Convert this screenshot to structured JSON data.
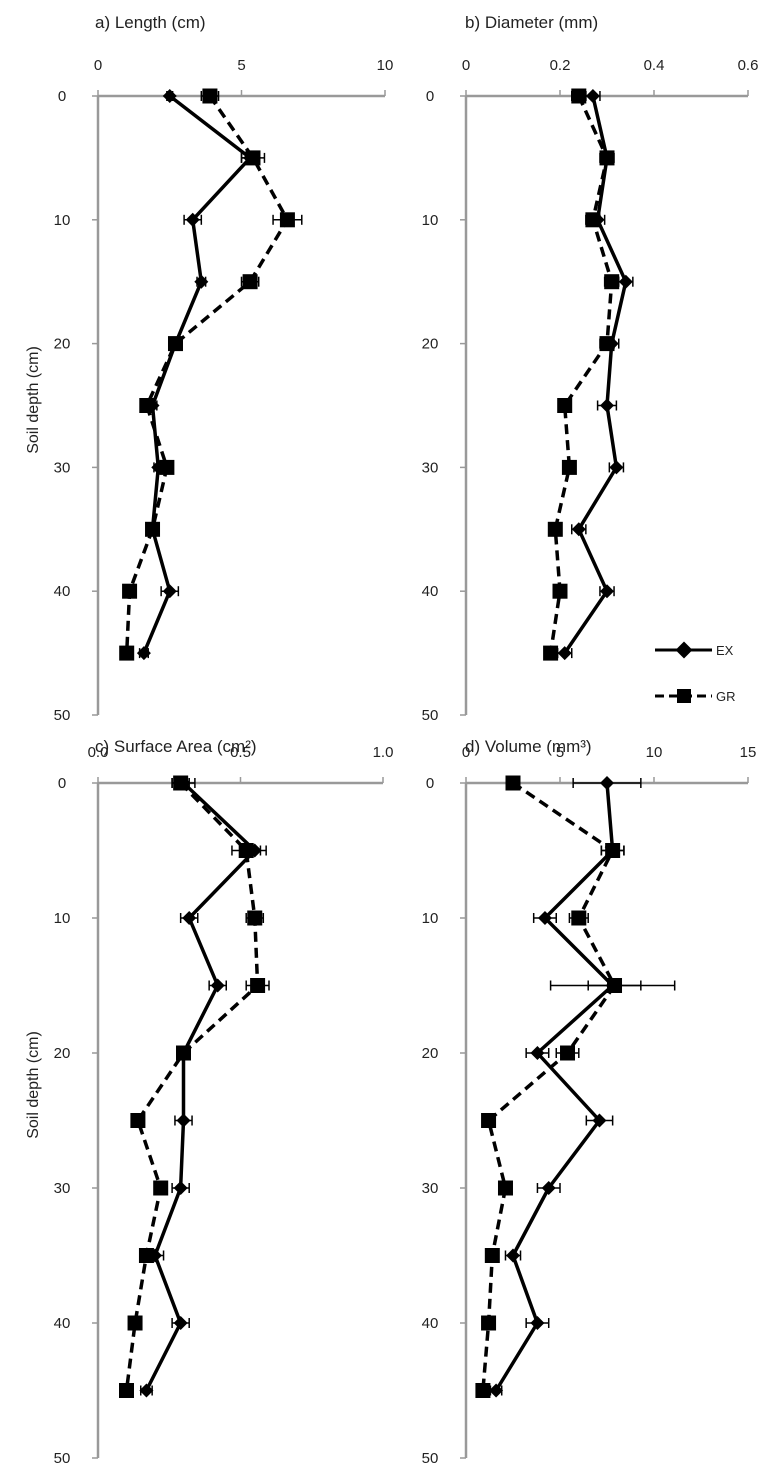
{
  "figure": {
    "ylabel": "Soil depth (cm)",
    "legend": [
      {
        "label": "EX",
        "style": "solid",
        "marker": "diamond"
      },
      {
        "label": "GR",
        "style": "dashed",
        "marker": "square"
      }
    ],
    "colors": {
      "line": "#000000",
      "axis": "#999999",
      "text": "#222222"
    }
  },
  "chart_data": [
    {
      "type": "line",
      "title": "a) Length (cm)",
      "xlim": [
        0,
        10
      ],
      "x_ticks": [
        "0",
        "5",
        "10"
      ],
      "ylim": [
        0,
        50
      ],
      "y_ticks": [
        "0",
        "10",
        "20",
        "30",
        "40",
        "50"
      ],
      "ylabel": "Soil depth (cm)",
      "depths": [
        0,
        5,
        10,
        15,
        20,
        25,
        30,
        35,
        40,
        45
      ],
      "series": [
        {
          "name": "EX",
          "values": [
            2.5,
            5.3,
            3.3,
            3.6,
            2.7,
            1.9,
            2.1,
            1.9,
            2.5,
            1.6
          ],
          "errors": [
            0.1,
            0.3,
            0.3,
            0.15,
            0.15,
            0.15,
            0.15,
            0.1,
            0.3,
            0.15
          ]
        },
        {
          "name": "GR",
          "values": [
            3.9,
            5.4,
            6.6,
            5.3,
            2.7,
            1.7,
            2.4,
            1.9,
            1.1,
            1.0
          ],
          "errors": [
            0.3,
            0.4,
            0.5,
            0.3,
            0.15,
            0.2,
            0.2,
            0.15,
            0.1,
            0.1
          ]
        }
      ]
    },
    {
      "type": "line",
      "title": "b) Diameter (mm)",
      "xlim": [
        0,
        0.6
      ],
      "x_ticks": [
        "0",
        "0.2",
        "0.4",
        "0.6"
      ],
      "ylim": [
        0,
        50
      ],
      "y_ticks": [
        "0",
        "10",
        "20",
        "30",
        "40",
        "50"
      ],
      "depths": [
        0,
        5,
        10,
        15,
        20,
        25,
        30,
        35,
        40,
        45
      ],
      "series": [
        {
          "name": "EX",
          "values": [
            0.27,
            0.3,
            0.28,
            0.34,
            0.31,
            0.3,
            0.32,
            0.24,
            0.3,
            0.21
          ],
          "errors": [
            0.015,
            0.01,
            0.015,
            0.015,
            0.015,
            0.02,
            0.015,
            0.015,
            0.015,
            0.015
          ]
        },
        {
          "name": "GR",
          "values": [
            0.24,
            0.3,
            0.27,
            0.31,
            0.3,
            0.21,
            0.22,
            0.19,
            0.2,
            0.18
          ],
          "errors": [
            0.015,
            0.015,
            0.015,
            0.015,
            0.015,
            0.01,
            0.01,
            0.01,
            0.01,
            0.01
          ]
        }
      ]
    },
    {
      "type": "line",
      "title": "c) Surface Area (cm²)",
      "xlim": [
        0,
        1.0
      ],
      "x_ticks": [
        "0.0",
        "0.5",
        "1.0"
      ],
      "ylim": [
        0,
        50
      ],
      "y_ticks": [
        "0",
        "10",
        "20",
        "30",
        "40",
        "50"
      ],
      "ylabel": "Soil depth (cm)",
      "depths": [
        0,
        5,
        10,
        15,
        20,
        25,
        30,
        35,
        40,
        45
      ],
      "series": [
        {
          "name": "EX",
          "values": [
            0.3,
            0.55,
            0.32,
            0.42,
            0.3,
            0.3,
            0.29,
            0.2,
            0.29,
            0.17
          ],
          "errors": [
            0.04,
            0.04,
            0.03,
            0.03,
            0.02,
            0.03,
            0.03,
            0.03,
            0.03,
            0.02
          ]
        },
        {
          "name": "GR",
          "values": [
            0.29,
            0.52,
            0.55,
            0.56,
            0.3,
            0.14,
            0.22,
            0.17,
            0.13,
            0.1
          ],
          "errors": [
            0.03,
            0.05,
            0.03,
            0.04,
            0.02,
            0.01,
            0.02,
            0.02,
            0.01,
            0.01
          ]
        }
      ]
    },
    {
      "type": "line",
      "title": "d) Volume (mm³)",
      "xlim": [
        0,
        15
      ],
      "x_ticks": [
        "0",
        "5",
        "10",
        "15"
      ],
      "ylim": [
        0,
        50
      ],
      "y_ticks": [
        "0",
        "10",
        "20",
        "30",
        "40",
        "50"
      ],
      "depths": [
        0,
        5,
        10,
        15,
        20,
        25,
        30,
        35,
        40,
        45
      ],
      "series": [
        {
          "name": "EX",
          "values": [
            7.5,
            7.8,
            4.2,
            7.8,
            3.8,
            7.1,
            4.4,
            2.5,
            3.8,
            1.6
          ],
          "errors": [
            1.8,
            0.6,
            0.6,
            3.3,
            0.6,
            0.7,
            0.6,
            0.4,
            0.6,
            0.3
          ]
        },
        {
          "name": "GR",
          "values": [
            2.5,
            7.8,
            6.0,
            7.9,
            5.4,
            1.2,
            2.1,
            1.4,
            1.2,
            0.9
          ],
          "errors": [
            0.2,
            0.6,
            0.5,
            1.4,
            0.6,
            0.2,
            0.3,
            0.2,
            0.2,
            0.2
          ]
        }
      ]
    }
  ]
}
